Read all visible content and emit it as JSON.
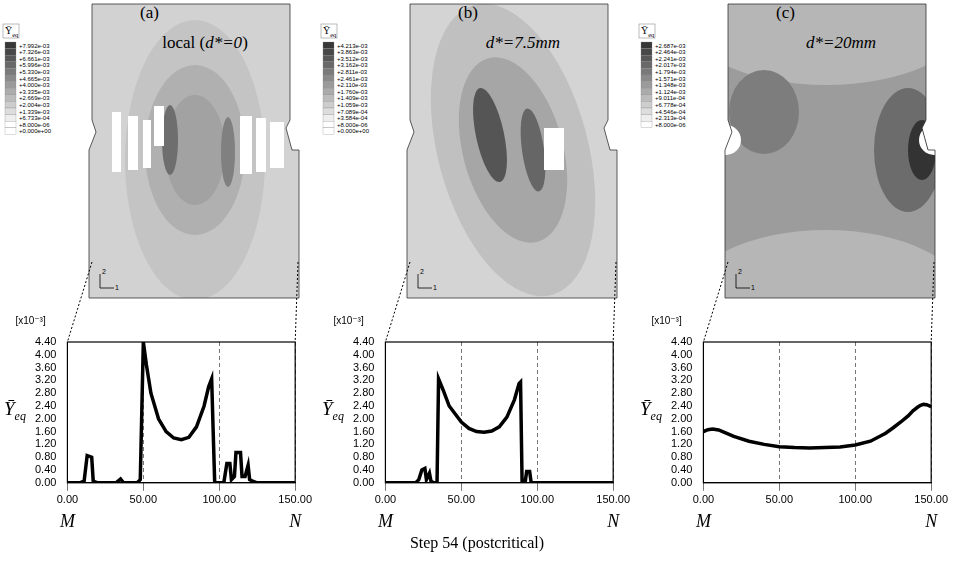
{
  "caption": "Step 54 (postcritical)",
  "panels": [
    {
      "letter": "(a)",
      "label": "local (d*=0)",
      "triad": [
        "2",
        "1"
      ],
      "colorbar": {
        "title": "Ȳeq",
        "ticks": [
          {
            "value": 0.007992,
            "label": "+7.992e-03"
          },
          {
            "value": 0.007326,
            "label": "+7.326e-03"
          },
          {
            "value": 0.006661,
            "label": "+6.661e-03"
          },
          {
            "value": 0.005996,
            "label": "+5.996e-03"
          },
          {
            "value": 0.00533,
            "label": "+5.330e-03"
          },
          {
            "value": 0.004665,
            "label": "+4.665e-03"
          },
          {
            "value": 0.004,
            "label": "+4.000e-03"
          },
          {
            "value": 0.003335,
            "label": "+3.335e-03"
          },
          {
            "value": 0.002669,
            "label": "+2.669e-03"
          },
          {
            "value": 0.002004,
            "label": "+2.004e-03"
          },
          {
            "value": 0.001339,
            "label": "+1.339e-03"
          },
          {
            "value": 0.0006733,
            "label": "+6.733e-04"
          },
          {
            "value": 8e-06,
            "label": "+8.000e-06"
          },
          {
            "value": 0,
            "label": "+0.000e+00"
          }
        ]
      }
    },
    {
      "letter": "(b)",
      "label": "d*=7.5mm",
      "triad": [
        "2",
        "1"
      ],
      "colorbar": {
        "title": "Ȳeq",
        "ticks": [
          {
            "value": 0.004213,
            "label": "+4.213e-03"
          },
          {
            "value": 0.003863,
            "label": "+3.863e-03"
          },
          {
            "value": 0.003512,
            "label": "+3.512e-03"
          },
          {
            "value": 0.003162,
            "label": "+3.162e-03"
          },
          {
            "value": 0.002811,
            "label": "+2.811e-03"
          },
          {
            "value": 0.002461,
            "label": "+2.461e-03"
          },
          {
            "value": 0.00211,
            "label": "+2.110e-03"
          },
          {
            "value": 0.00176,
            "label": "+1.760e-03"
          },
          {
            "value": 0.001409,
            "label": "+1.409e-03"
          },
          {
            "value": 0.001059,
            "label": "+1.059e-03"
          },
          {
            "value": 0.0007089,
            "label": "+7.089e-04"
          },
          {
            "value": 0.0003584,
            "label": "+3.584e-04"
          },
          {
            "value": 8e-06,
            "label": "+8.000e-06"
          },
          {
            "value": 0,
            "label": "+0.000e+00"
          }
        ]
      }
    },
    {
      "letter": "(c)",
      "label": "d*=20mm",
      "triad": [
        "2",
        "1"
      ],
      "colorbar": {
        "title": "Ȳeq",
        "ticks": [
          {
            "value": 0.002687,
            "label": "+2.687e-03"
          },
          {
            "value": 0.002464,
            "label": "+2.464e-03"
          },
          {
            "value": 0.002241,
            "label": "+2.241e-03"
          },
          {
            "value": 0.002017,
            "label": "+2.017e-03"
          },
          {
            "value": 0.001794,
            "label": "+1.794e-03"
          },
          {
            "value": 0.001571,
            "label": "+1.571e-03"
          },
          {
            "value": 0.001348,
            "label": "+1.348e-03"
          },
          {
            "value": 0.001124,
            "label": "+1.124e-03"
          },
          {
            "value": 0.0009011,
            "label": "+9.011e-04"
          },
          {
            "value": 0.0006778,
            "label": "+6.778e-04"
          },
          {
            "value": 0.0004546,
            "label": "+4.546e-04"
          },
          {
            "value": 0.0002313,
            "label": "+2.313e-04"
          },
          {
            "value": 8e-06,
            "label": "+8.000e-06"
          }
        ]
      }
    }
  ],
  "chart_data": [
    {
      "type": "line",
      "color": "#000000",
      "grid": "x",
      "y_label": "Ȳeq",
      "y_multiplier": "[x10⁻³]",
      "x_end_labels": [
        "M",
        "N"
      ],
      "x": [
        0,
        8,
        11,
        13,
        16,
        17,
        20,
        32,
        35,
        37,
        46,
        48,
        50,
        52,
        55,
        60,
        65,
        70,
        75,
        80,
        85,
        90,
        93,
        95,
        96,
        97,
        103,
        105,
        107,
        108,
        110,
        111,
        114,
        115,
        117,
        119,
        120,
        122,
        125,
        150
      ],
      "values": [
        0,
        0,
        0.05,
        0.85,
        0.8,
        0.05,
        0,
        0,
        0.12,
        0,
        0,
        0.1,
        4.4,
        3.7,
        2.8,
        2.0,
        1.6,
        1.4,
        1.35,
        1.42,
        1.75,
        2.4,
        3.0,
        3.25,
        1.6,
        0,
        0,
        0.6,
        0.6,
        0.1,
        0.2,
        0.95,
        0.95,
        0.2,
        0.2,
        0.55,
        0.1,
        0.05,
        0,
        0
      ],
      "xlim": [
        0,
        150
      ],
      "xticks": [
        {
          "value": 0,
          "label": "0.00"
        },
        {
          "value": 50,
          "label": "50.00"
        },
        {
          "value": 100,
          "label": "100.00"
        },
        {
          "value": 150,
          "label": "150.00"
        }
      ],
      "ylim": [
        0,
        4.4
      ],
      "yticks": [
        {
          "value": 0,
          "label": "0.00"
        },
        {
          "value": 0.4,
          "label": "0.40"
        },
        {
          "value": 0.8,
          "label": "0.80"
        },
        {
          "value": 1.2,
          "label": "1.20"
        },
        {
          "value": 1.6,
          "label": "1.60"
        },
        {
          "value": 2.0,
          "label": "2.00"
        },
        {
          "value": 2.4,
          "label": "2.40"
        },
        {
          "value": 2.8,
          "label": "2.80"
        },
        {
          "value": 3.2,
          "label": "3.20"
        },
        {
          "value": 3.6,
          "label": "3.60"
        },
        {
          "value": 4.0,
          "label": "4.00"
        },
        {
          "value": 4.4,
          "label": "4.40"
        }
      ]
    },
    {
      "type": "line",
      "color": "#000000",
      "grid": "x",
      "y_label": "Ȳeq",
      "y_multiplier": "[x10⁻³]",
      "x_end_labels": [
        "M",
        "N"
      ],
      "x": [
        0,
        20,
        22,
        24,
        26,
        27,
        29,
        30,
        32,
        34,
        35,
        38,
        42,
        50,
        55,
        60,
        65,
        70,
        75,
        80,
        85,
        88,
        89,
        90,
        92,
        93,
        95,
        96,
        150
      ],
      "values": [
        0,
        0,
        0.1,
        0.4,
        0.45,
        0.1,
        0.3,
        0.05,
        0,
        0,
        3.25,
        2.9,
        2.4,
        1.9,
        1.7,
        1.6,
        1.58,
        1.62,
        1.75,
        2.05,
        2.6,
        3.1,
        3.15,
        0.05,
        0,
        0.35,
        0.35,
        0,
        0
      ],
      "xlim": [
        0,
        150
      ],
      "xticks": [
        {
          "value": 0,
          "label": "0.00"
        },
        {
          "value": 50,
          "label": "50.00"
        },
        {
          "value": 100,
          "label": "100.00"
        },
        {
          "value": 150,
          "label": "150.00"
        }
      ],
      "ylim": [
        0,
        4.4
      ],
      "yticks": [
        {
          "value": 0,
          "label": "0.00"
        },
        {
          "value": 0.4,
          "label": "0.40"
        },
        {
          "value": 0.8,
          "label": "0.80"
        },
        {
          "value": 1.2,
          "label": "1.20"
        },
        {
          "value": 1.6,
          "label": "1.60"
        },
        {
          "value": 2.0,
          "label": "2.00"
        },
        {
          "value": 2.4,
          "label": "2.40"
        },
        {
          "value": 2.8,
          "label": "2.80"
        },
        {
          "value": 3.2,
          "label": "3.20"
        },
        {
          "value": 3.6,
          "label": "3.60"
        },
        {
          "value": 4.0,
          "label": "4.00"
        },
        {
          "value": 4.4,
          "label": "4.40"
        }
      ]
    },
    {
      "type": "line",
      "color": "#000000",
      "grid": "x",
      "y_label": "Ȳeq",
      "y_multiplier": "[x10⁻³]",
      "x_end_labels": [
        "M",
        "N"
      ],
      "x": [
        0,
        3,
        6,
        10,
        15,
        20,
        30,
        40,
        50,
        60,
        70,
        80,
        90,
        100,
        110,
        120,
        125,
        130,
        135,
        138,
        141,
        143,
        145,
        147,
        150
      ],
      "values": [
        1.6,
        1.66,
        1.68,
        1.65,
        1.55,
        1.45,
        1.3,
        1.2,
        1.13,
        1.1,
        1.09,
        1.1,
        1.12,
        1.18,
        1.3,
        1.55,
        1.72,
        1.9,
        2.1,
        2.25,
        2.36,
        2.42,
        2.45,
        2.44,
        2.38
      ],
      "xlim": [
        0,
        150
      ],
      "xticks": [
        {
          "value": 0,
          "label": "0.00"
        },
        {
          "value": 50,
          "label": "50.00"
        },
        {
          "value": 100,
          "label": "100.00"
        },
        {
          "value": 150,
          "label": "150.00"
        }
      ],
      "ylim": [
        0,
        4.4
      ],
      "yticks": [
        {
          "value": 0,
          "label": "0.00"
        },
        {
          "value": 0.4,
          "label": "0.40"
        },
        {
          "value": 0.8,
          "label": "0.80"
        },
        {
          "value": 1.2,
          "label": "1.20"
        },
        {
          "value": 1.6,
          "label": "1.60"
        },
        {
          "value": 2.0,
          "label": "2.00"
        },
        {
          "value": 2.4,
          "label": "2.40"
        },
        {
          "value": 2.8,
          "label": "2.80"
        },
        {
          "value": 3.2,
          "label": "3.20"
        },
        {
          "value": 3.6,
          "label": "3.60"
        },
        {
          "value": 4.0,
          "label": "4.00"
        },
        {
          "value": 4.4,
          "label": "4.40"
        }
      ]
    }
  ]
}
